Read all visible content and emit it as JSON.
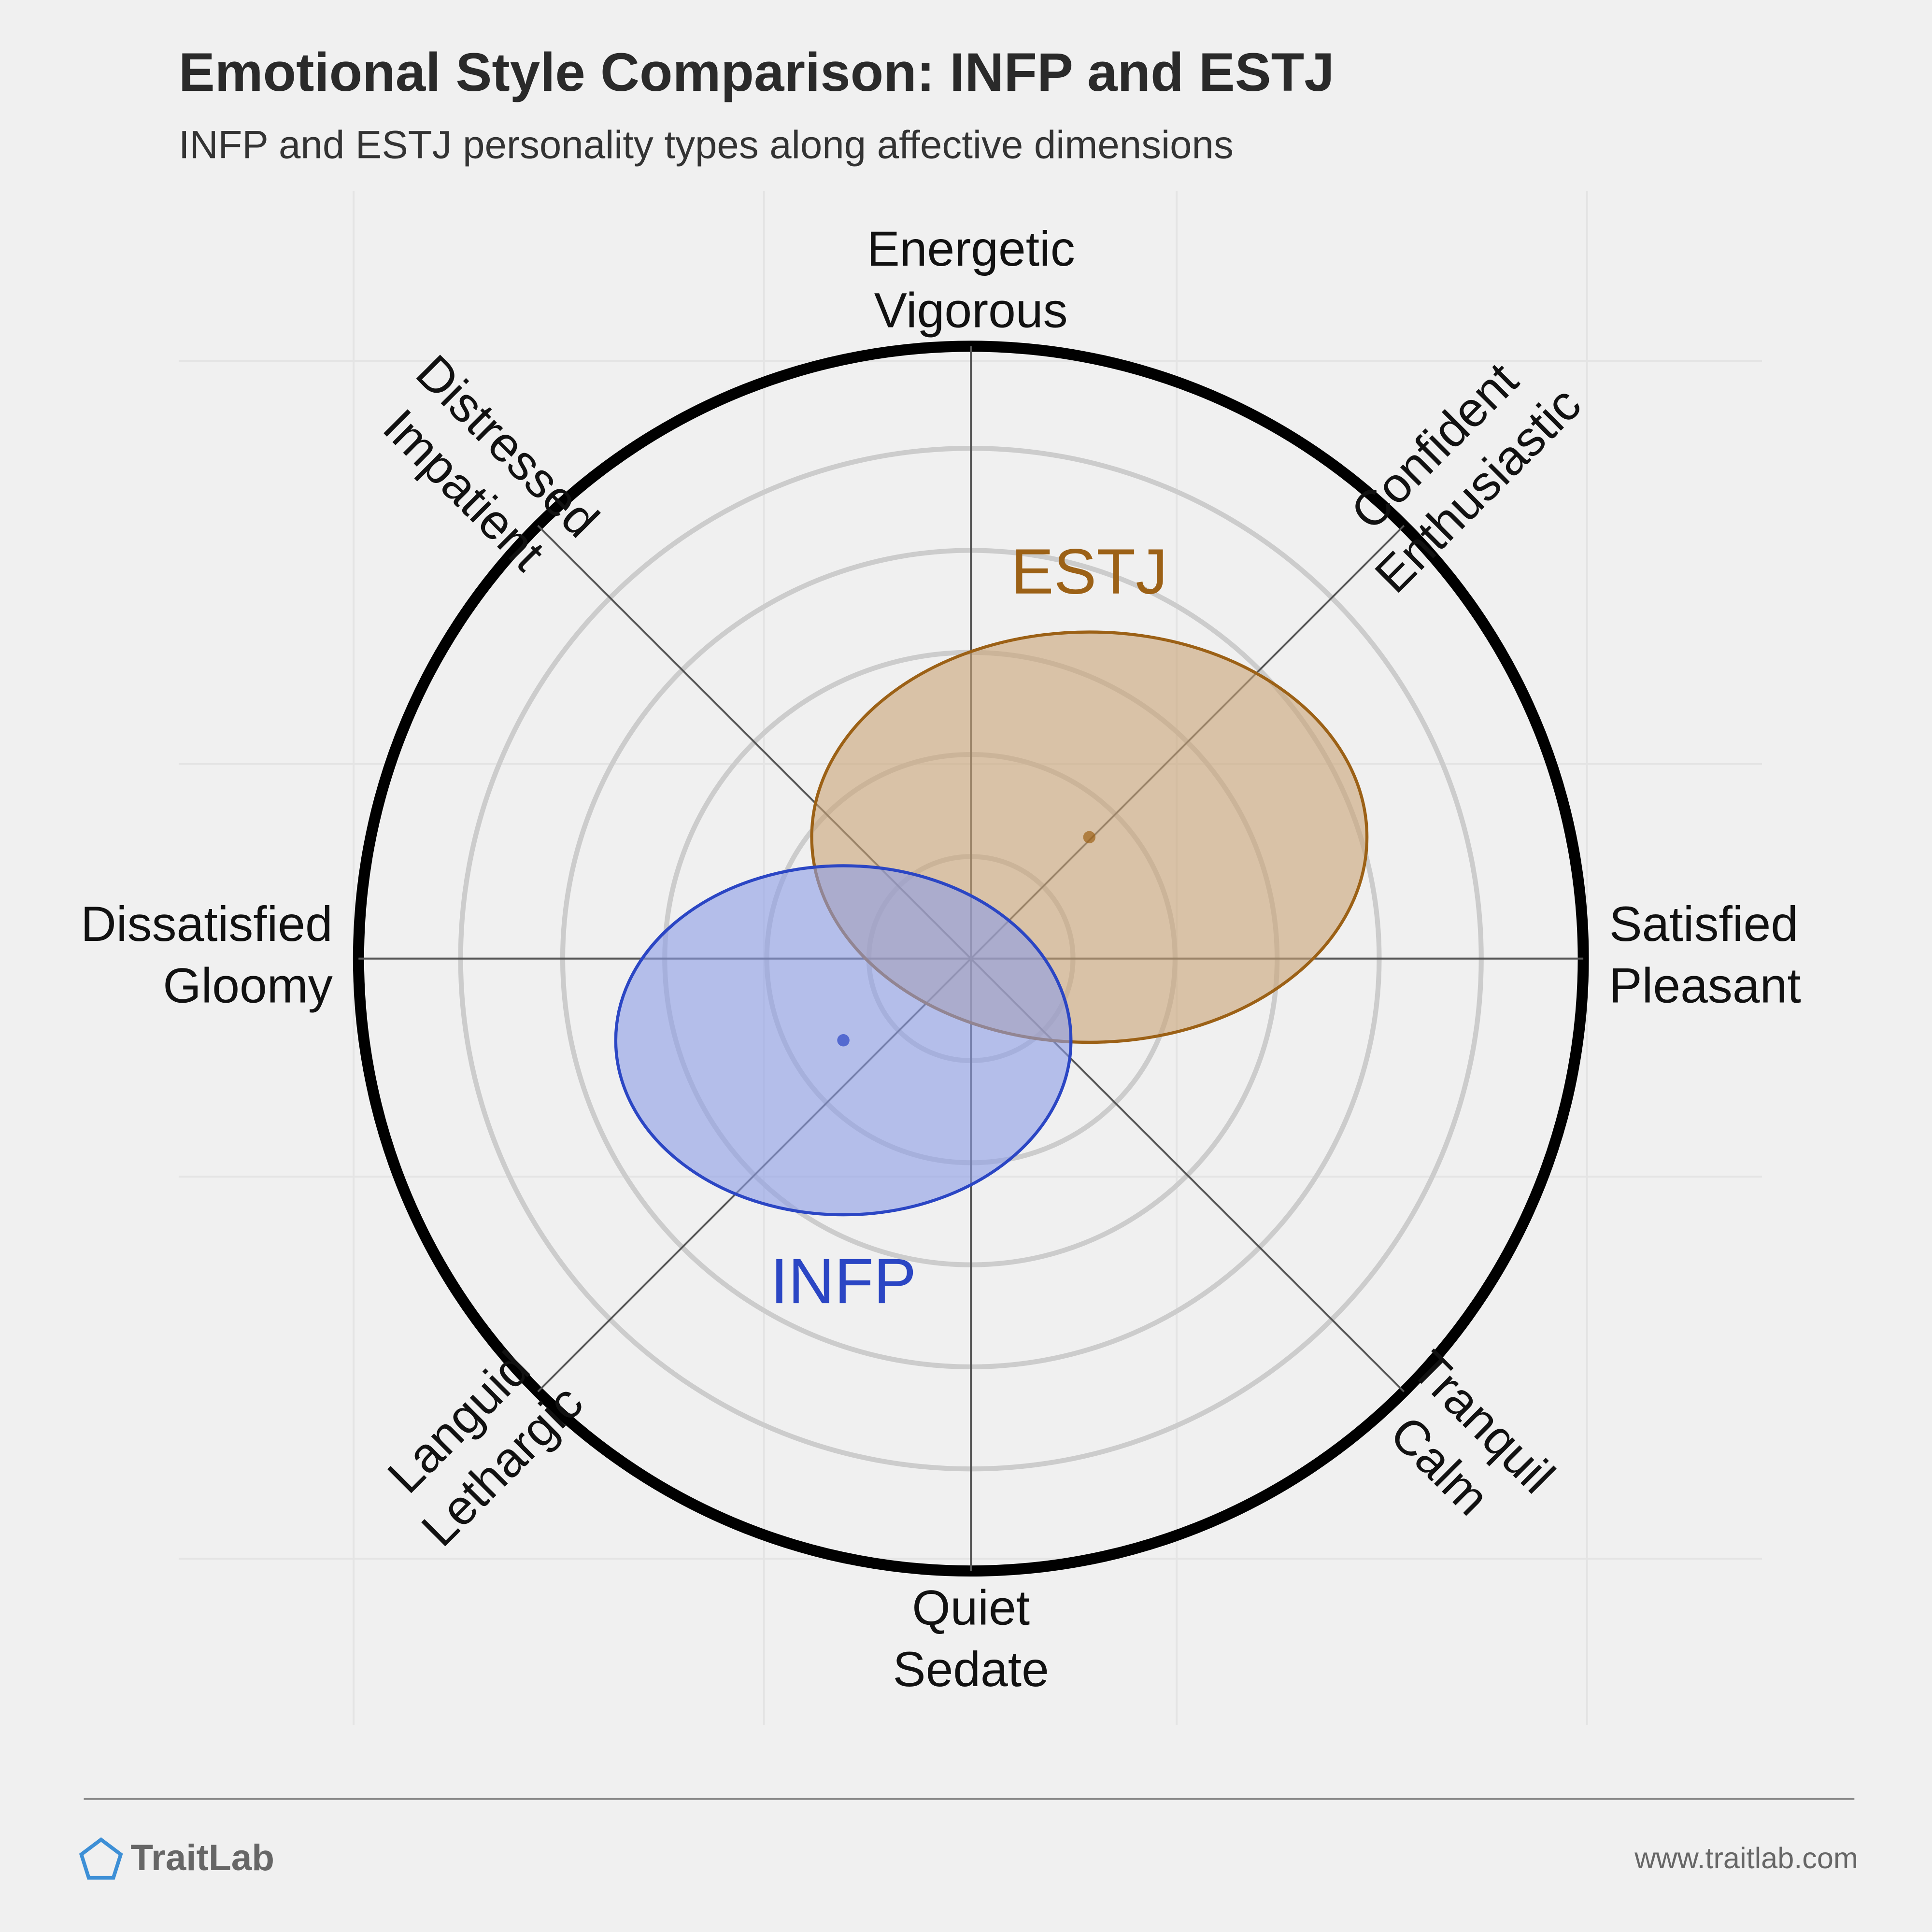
{
  "chart_data": {
    "type": "circumplex",
    "title": "Emotional Style Comparison: INFP and ESTJ",
    "subtitle": "INFP and ESTJ personality types along affective dimensions",
    "axis_labels": [
      [
        "Satisfied",
        "Pleasant"
      ],
      [
        "Confident",
        "Enthusiastic"
      ],
      [
        "Energetic",
        "Vigorous"
      ],
      [
        "Distressed",
        "Impatient"
      ],
      [
        "Dissatisfied",
        "Gloomy"
      ],
      [
        "Languid",
        "Lethargic"
      ],
      [
        "Quiet",
        "Sedate"
      ],
      [
        "Tranquil",
        "Calm"
      ]
    ],
    "xlim": [
      -6,
      6
    ],
    "ylim": [
      -6,
      6
    ],
    "rings": [
      1,
      2,
      3,
      4,
      5
    ],
    "series": [
      {
        "name": "ESTJ",
        "color": "#9c6116",
        "fill": "#c9a477",
        "x": 1.16,
        "y": 1.19,
        "rx": 2.72,
        "ry": 2.01
      },
      {
        "name": "INFP",
        "color": "#2b46c4",
        "fill": "#8c9ce6",
        "x": -1.25,
        "y": -0.8,
        "rx": 2.23,
        "ry": 1.71
      }
    ],
    "brand": "TraitLab",
    "url": "www.traitlab.com"
  }
}
